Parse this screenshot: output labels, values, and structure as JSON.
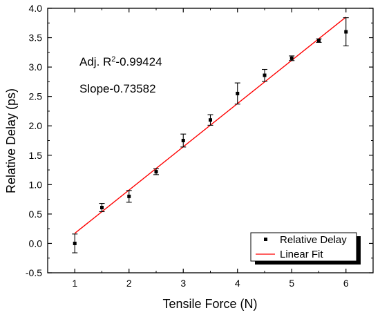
{
  "chart_data": {
    "type": "scatter",
    "title": "",
    "xlabel": "Tensile Force (N)",
    "ylabel": "Relative Delay (ps)",
    "xlim": [
      0.5,
      6.5
    ],
    "ylim": [
      -0.5,
      4.0
    ],
    "x_ticks": [
      "1",
      "2",
      "3",
      "4",
      "5",
      "6"
    ],
    "y_ticks": [
      "-0.5",
      "0.0",
      "0.5",
      "1.0",
      "1.5",
      "2.0",
      "2.5",
      "3.0",
      "3.5",
      "4.0"
    ],
    "grid": false,
    "series": [
      {
        "name": "Relative Delay",
        "kind": "scatter-with-error",
        "color": "#000000",
        "points": [
          {
            "x": 1.0,
            "y": 0.0,
            "err": 0.16
          },
          {
            "x": 1.5,
            "y": 0.61,
            "err": 0.07
          },
          {
            "x": 2.0,
            "y": 0.8,
            "err": 0.1
          },
          {
            "x": 2.5,
            "y": 1.22,
            "err": 0.05
          },
          {
            "x": 3.0,
            "y": 1.75,
            "err": 0.11
          },
          {
            "x": 3.5,
            "y": 2.1,
            "err": 0.09
          },
          {
            "x": 4.0,
            "y": 2.55,
            "err": 0.18
          },
          {
            "x": 4.5,
            "y": 2.86,
            "err": 0.1
          },
          {
            "x": 5.0,
            "y": 3.15,
            "err": 0.04
          },
          {
            "x": 5.5,
            "y": 3.45,
            "err": 0.03
          },
          {
            "x": 6.0,
            "y": 3.6,
            "err": 0.24
          }
        ]
      },
      {
        "name": "Linear Fit",
        "kind": "line",
        "color": "#ff0000",
        "x": [
          1.0,
          6.0
        ],
        "y": [
          0.172,
          3.851
        ]
      }
    ],
    "annotations": {
      "adj_prefix": "Adj. R",
      "adj_sup": "2",
      "adj_value": "-0.99424",
      "slope": "Slope-0.73582"
    },
    "legend": {
      "position": "bottom-right"
    }
  }
}
